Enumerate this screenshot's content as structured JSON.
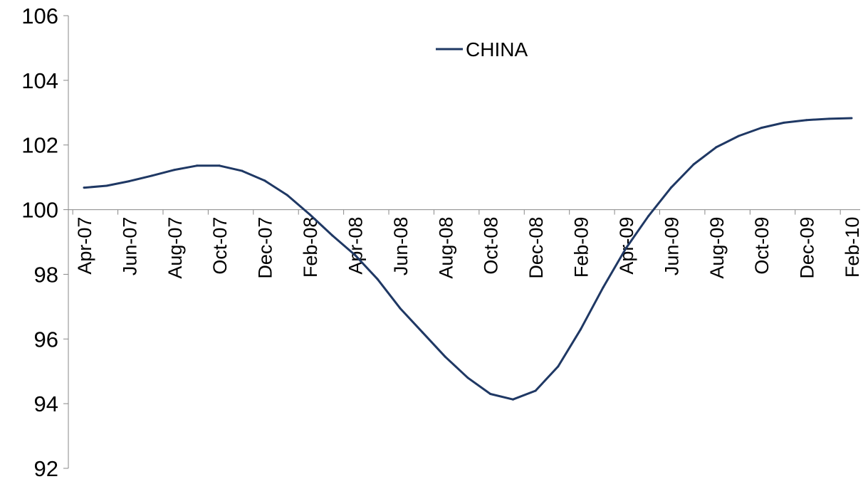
{
  "chart_data": {
    "type": "line",
    "title": "",
    "xlabel": "",
    "ylabel": "",
    "ylim": [
      92,
      106
    ],
    "yticks": [
      92,
      94,
      96,
      98,
      100,
      102,
      104,
      106
    ],
    "crosses_at": 100,
    "grid": false,
    "legend": {
      "position": "top-center"
    },
    "x": [
      "Apr-07",
      "May-07",
      "Jun-07",
      "Jul-07",
      "Aug-07",
      "Sep-07",
      "Oct-07",
      "Nov-07",
      "Dec-07",
      "Jan-08",
      "Feb-08",
      "Mar-08",
      "Apr-08",
      "May-08",
      "Jun-08",
      "Jul-08",
      "Aug-08",
      "Sep-08",
      "Oct-08",
      "Nov-08",
      "Dec-08",
      "Jan-09",
      "Feb-09",
      "Mar-09",
      "Apr-09",
      "May-09",
      "Jun-09",
      "Jul-09",
      "Aug-09",
      "Sep-09",
      "Oct-09",
      "Nov-09",
      "Dec-09",
      "Jan-10",
      "Feb-10"
    ],
    "x_tick_labels": [
      "Apr-07",
      "Jun-07",
      "Aug-07",
      "Oct-07",
      "Dec-07",
      "Feb-08",
      "Apr-08",
      "Jun-08",
      "Aug-08",
      "Oct-08",
      "Dec-08",
      "Feb-09",
      "Apr-09",
      "Jun-09",
      "Aug-09",
      "Oct-09",
      "Dec-09",
      "Feb-10"
    ],
    "series": [
      {
        "name": "CHINA",
        "color": "#1f3864",
        "values": [
          100.68,
          100.74,
          100.88,
          101.05,
          101.23,
          101.36,
          101.36,
          101.2,
          100.9,
          100.45,
          99.85,
          99.2,
          98.6,
          97.85,
          96.95,
          96.2,
          95.45,
          94.8,
          94.3,
          94.13,
          94.4,
          95.15,
          96.3,
          97.6,
          98.8,
          99.8,
          100.68,
          101.4,
          101.93,
          102.28,
          102.53,
          102.69,
          102.77,
          102.81,
          102.83
        ]
      }
    ]
  }
}
